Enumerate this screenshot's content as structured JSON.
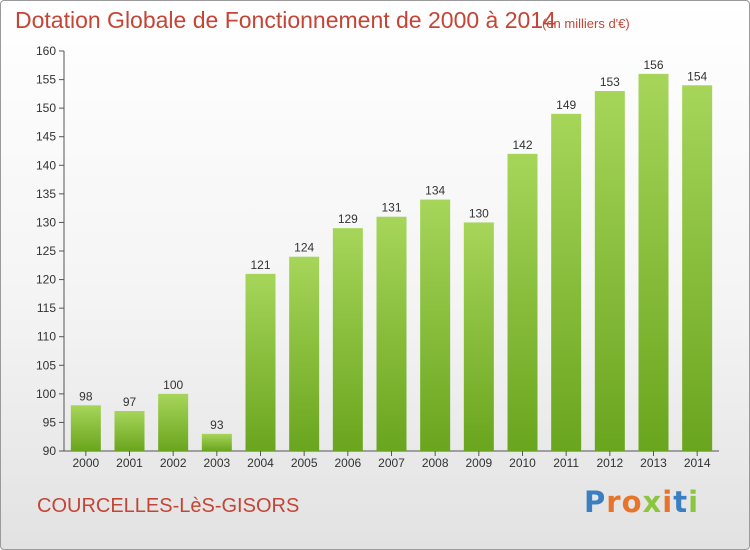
{
  "header": {
    "title": "Dotation Globale de Fonctionnement de 2000 à 2014",
    "unit_note": "(en milliers d'€)"
  },
  "footer": {
    "commune": "COURCELLES-LèS-GISORS",
    "logo_letters": [
      {
        "ch": "P",
        "color": "#3a7fc1"
      },
      {
        "ch": "r",
        "color": "#e8732a"
      },
      {
        "ch": "o",
        "color": "#e8732a"
      },
      {
        "ch": "x",
        "color": "#8cc63f"
      },
      {
        "ch": "i",
        "color": "#e8732a"
      },
      {
        "ch": "t",
        "color": "#3a7fc1"
      },
      {
        "ch": "i",
        "color": "#8cc63f"
      }
    ]
  },
  "chart_data": {
    "type": "bar",
    "title": "Dotation Globale de Fonctionnement de 2000 à 2014",
    "subtitle": "(en milliers d'€)",
    "categories": [
      "2000",
      "2001",
      "2002",
      "2003",
      "2004",
      "2005",
      "2006",
      "2007",
      "2008",
      "2009",
      "2010",
      "2011",
      "2012",
      "2013",
      "2014"
    ],
    "values": [
      98,
      97,
      100,
      93,
      121,
      124,
      129,
      131,
      134,
      130,
      142,
      149,
      153,
      156,
      154
    ],
    "ylim": [
      90,
      160
    ],
    "yticks": [
      90,
      95,
      100,
      105,
      110,
      115,
      120,
      125,
      130,
      135,
      140,
      145,
      150,
      155,
      160
    ],
    "grid": false,
    "bar_color_light": "#a6d55a",
    "bar_color_dark": "#6aa51e"
  }
}
